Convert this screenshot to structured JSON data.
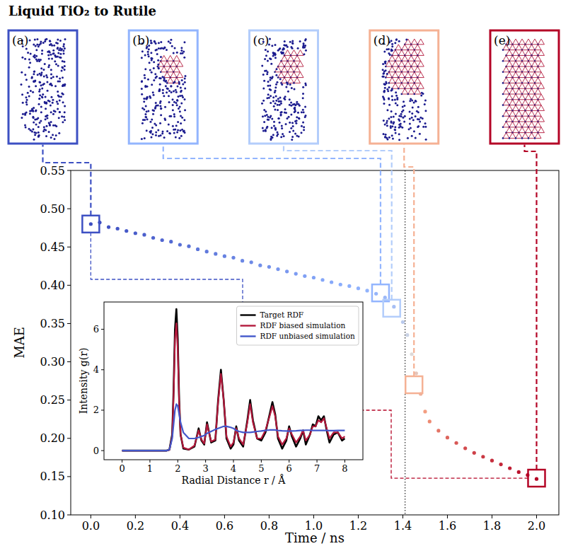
{
  "chart_data": [
    {
      "type": "scatter",
      "title": "Liquid TiO₂ to Rutile",
      "x_label": "Time / ns",
      "y_label": "MAE",
      "x": [
        0.0,
        0.04,
        0.08,
        0.12,
        0.16,
        0.2,
        0.24,
        0.28,
        0.32,
        0.36,
        0.4,
        0.44,
        0.48,
        0.52,
        0.56,
        0.6,
        0.64,
        0.68,
        0.72,
        0.76,
        0.8,
        0.84,
        0.88,
        0.92,
        0.96,
        1.0,
        1.04,
        1.08,
        1.12,
        1.16,
        1.2,
        1.24,
        1.28,
        1.32,
        1.36,
        1.4,
        1.42,
        1.44,
        1.46,
        1.48,
        1.5,
        1.52,
        1.56,
        1.6,
        1.64,
        1.68,
        1.72,
        1.76,
        1.8,
        1.84,
        1.88,
        1.92,
        1.96,
        2.0
      ],
      "values": [
        0.48,
        0.482,
        0.476,
        0.474,
        0.471,
        0.468,
        0.466,
        0.462,
        0.459,
        0.457,
        0.453,
        0.451,
        0.447,
        0.444,
        0.441,
        0.438,
        0.436,
        0.432,
        0.43,
        0.426,
        0.424,
        0.421,
        0.418,
        0.415,
        0.412,
        0.41,
        0.407,
        0.404,
        0.401,
        0.399,
        0.396,
        0.393,
        0.389,
        0.384,
        0.372,
        0.352,
        0.335,
        0.31,
        0.285,
        0.258,
        0.235,
        0.222,
        0.21,
        0.201,
        0.194,
        0.187,
        0.181,
        0.176,
        0.171,
        0.166,
        0.161,
        0.156,
        0.152,
        0.147
      ],
      "xlim": [
        -0.09,
        2.1
      ],
      "ylim": [
        0.1,
        0.55
      ],
      "xticks": [
        {
          "value": 0,
          "label": "0.0"
        },
        0.2,
        0.4,
        0.6,
        0.8,
        {
          "value": 1,
          "label": "1.0"
        },
        1.2,
        1.4,
        1.6,
        1.8,
        {
          "value": 2,
          "label": "2.0"
        }
      ],
      "yticks": [
        {
          "value": 0.1,
          "label": "0.10"
        },
        0.15,
        {
          "value": 0.2,
          "label": "0.20"
        },
        0.25,
        {
          "value": 0.3,
          "label": "0.30"
        },
        0.35,
        {
          "value": 0.4,
          "label": "0.40"
        },
        0.45,
        {
          "value": 0.5,
          "label": "0.50"
        },
        0.55
      ],
      "vlines": [
        1.41
      ],
      "snapshots": [
        {
          "label": "(a)",
          "x": 0.0,
          "y": 0.48,
          "color": "#3d50c3"
        },
        {
          "label": "(b)",
          "x": 1.3,
          "y": 0.39,
          "color": "#93b5fe"
        },
        {
          "label": "(c)",
          "x": 1.35,
          "y": 0.37,
          "color": "#b3cdfb"
        },
        {
          "label": "(d)",
          "x": 1.45,
          "y": 0.27,
          "color": "#f5b194"
        },
        {
          "label": "(e)",
          "x": 2.0,
          "y": 0.148,
          "color": "#b40426"
        }
      ]
    },
    {
      "type": "line",
      "x_label": "Radial Distance r / Å",
      "y_label": "Intensity g(r)",
      "x": [
        0,
        1.0,
        1.6,
        1.7,
        1.8,
        1.85,
        1.9,
        1.95,
        2.0,
        2.05,
        2.1,
        2.2,
        2.4,
        2.6,
        2.75,
        2.85,
        2.95,
        3.05,
        3.2,
        3.35,
        3.45,
        3.55,
        3.65,
        3.75,
        3.9,
        4.0,
        4.1,
        4.2,
        4.35,
        4.5,
        4.6,
        4.7,
        4.85,
        5.0,
        5.15,
        5.3,
        5.4,
        5.5,
        5.6,
        5.75,
        5.9,
        6.0,
        6.1,
        6.25,
        6.4,
        6.5,
        6.6,
        6.75,
        6.85,
        6.95,
        7.05,
        7.15,
        7.25,
        7.35,
        7.45,
        7.6,
        7.75,
        7.9,
        8.0
      ],
      "series": [
        {
          "name": "Target RDF",
          "color": "#000000",
          "values": [
            0,
            0,
            0,
            0.05,
            0.8,
            3.0,
            6.0,
            7.0,
            5.5,
            2.5,
            0.8,
            0.1,
            0.05,
            0.2,
            1.1,
            0.5,
            0.3,
            1.4,
            0.4,
            0.5,
            2.5,
            4.0,
            2.5,
            0.6,
            0.1,
            0.3,
            1.2,
            0.5,
            0.2,
            1.5,
            2.5,
            1.5,
            0.6,
            0.5,
            0.9,
            1.8,
            2.4,
            1.8,
            0.6,
            0.1,
            0.5,
            1.2,
            0.7,
            0.2,
            0.6,
            1.0,
            0.3,
            0.8,
            1.3,
            1.2,
            1.7,
            1.5,
            1.7,
            1.0,
            0.4,
            0.8,
            0.9,
            0.5,
            0.6
          ]
        },
        {
          "name": "RDF biased simulation",
          "color": "#b2183b",
          "values": [
            0,
            0,
            0,
            0.03,
            0.7,
            2.7,
            5.5,
            6.3,
            5.0,
            2.4,
            0.8,
            0.15,
            0.05,
            0.25,
            1.0,
            0.55,
            0.35,
            1.3,
            0.45,
            0.55,
            2.4,
            3.8,
            2.5,
            0.7,
            0.2,
            0.4,
            1.1,
            0.6,
            0.3,
            1.4,
            2.3,
            1.4,
            0.6,
            0.6,
            1.0,
            1.7,
            2.2,
            1.7,
            0.7,
            0.3,
            0.6,
            1.1,
            0.8,
            0.4,
            0.7,
            1.0,
            0.5,
            0.8,
            1.2,
            1.2,
            1.5,
            1.4,
            1.6,
            1.1,
            0.6,
            0.9,
            0.9,
            0.6,
            0.7
          ]
        },
        {
          "name": "RDF unbiased simulation",
          "color": "#4358cb",
          "values": [
            0,
            0,
            0,
            0.05,
            0.6,
            1.3,
            2.0,
            2.3,
            2.2,
            1.8,
            1.4,
            0.9,
            0.6,
            0.6,
            0.65,
            0.7,
            0.75,
            0.85,
            0.95,
            1.05,
            1.1,
            1.15,
            1.2,
            1.2,
            1.15,
            1.1,
            1.0,
            0.95,
            0.9,
            0.9,
            0.9,
            0.92,
            0.95,
            0.97,
            1.0,
            1.02,
            1.02,
            1.02,
            1.0,
            0.98,
            0.97,
            0.96,
            0.97,
            0.98,
            1.0,
            1.0,
            1.01,
            1.01,
            1.0,
            1.0,
            1.0,
            1.0,
            1.0,
            1.0,
            0.99,
            0.99,
            1.0,
            1.0,
            1.0
          ]
        }
      ],
      "xlim": [
        -0.65,
        8.65
      ],
      "ylim": [
        -0.45,
        7.35
      ],
      "xticks": [
        0,
        1,
        2,
        3,
        4,
        5,
        6,
        7,
        8
      ],
      "yticks": [
        0,
        2,
        4,
        6
      ],
      "legend": "upper right"
    }
  ]
}
